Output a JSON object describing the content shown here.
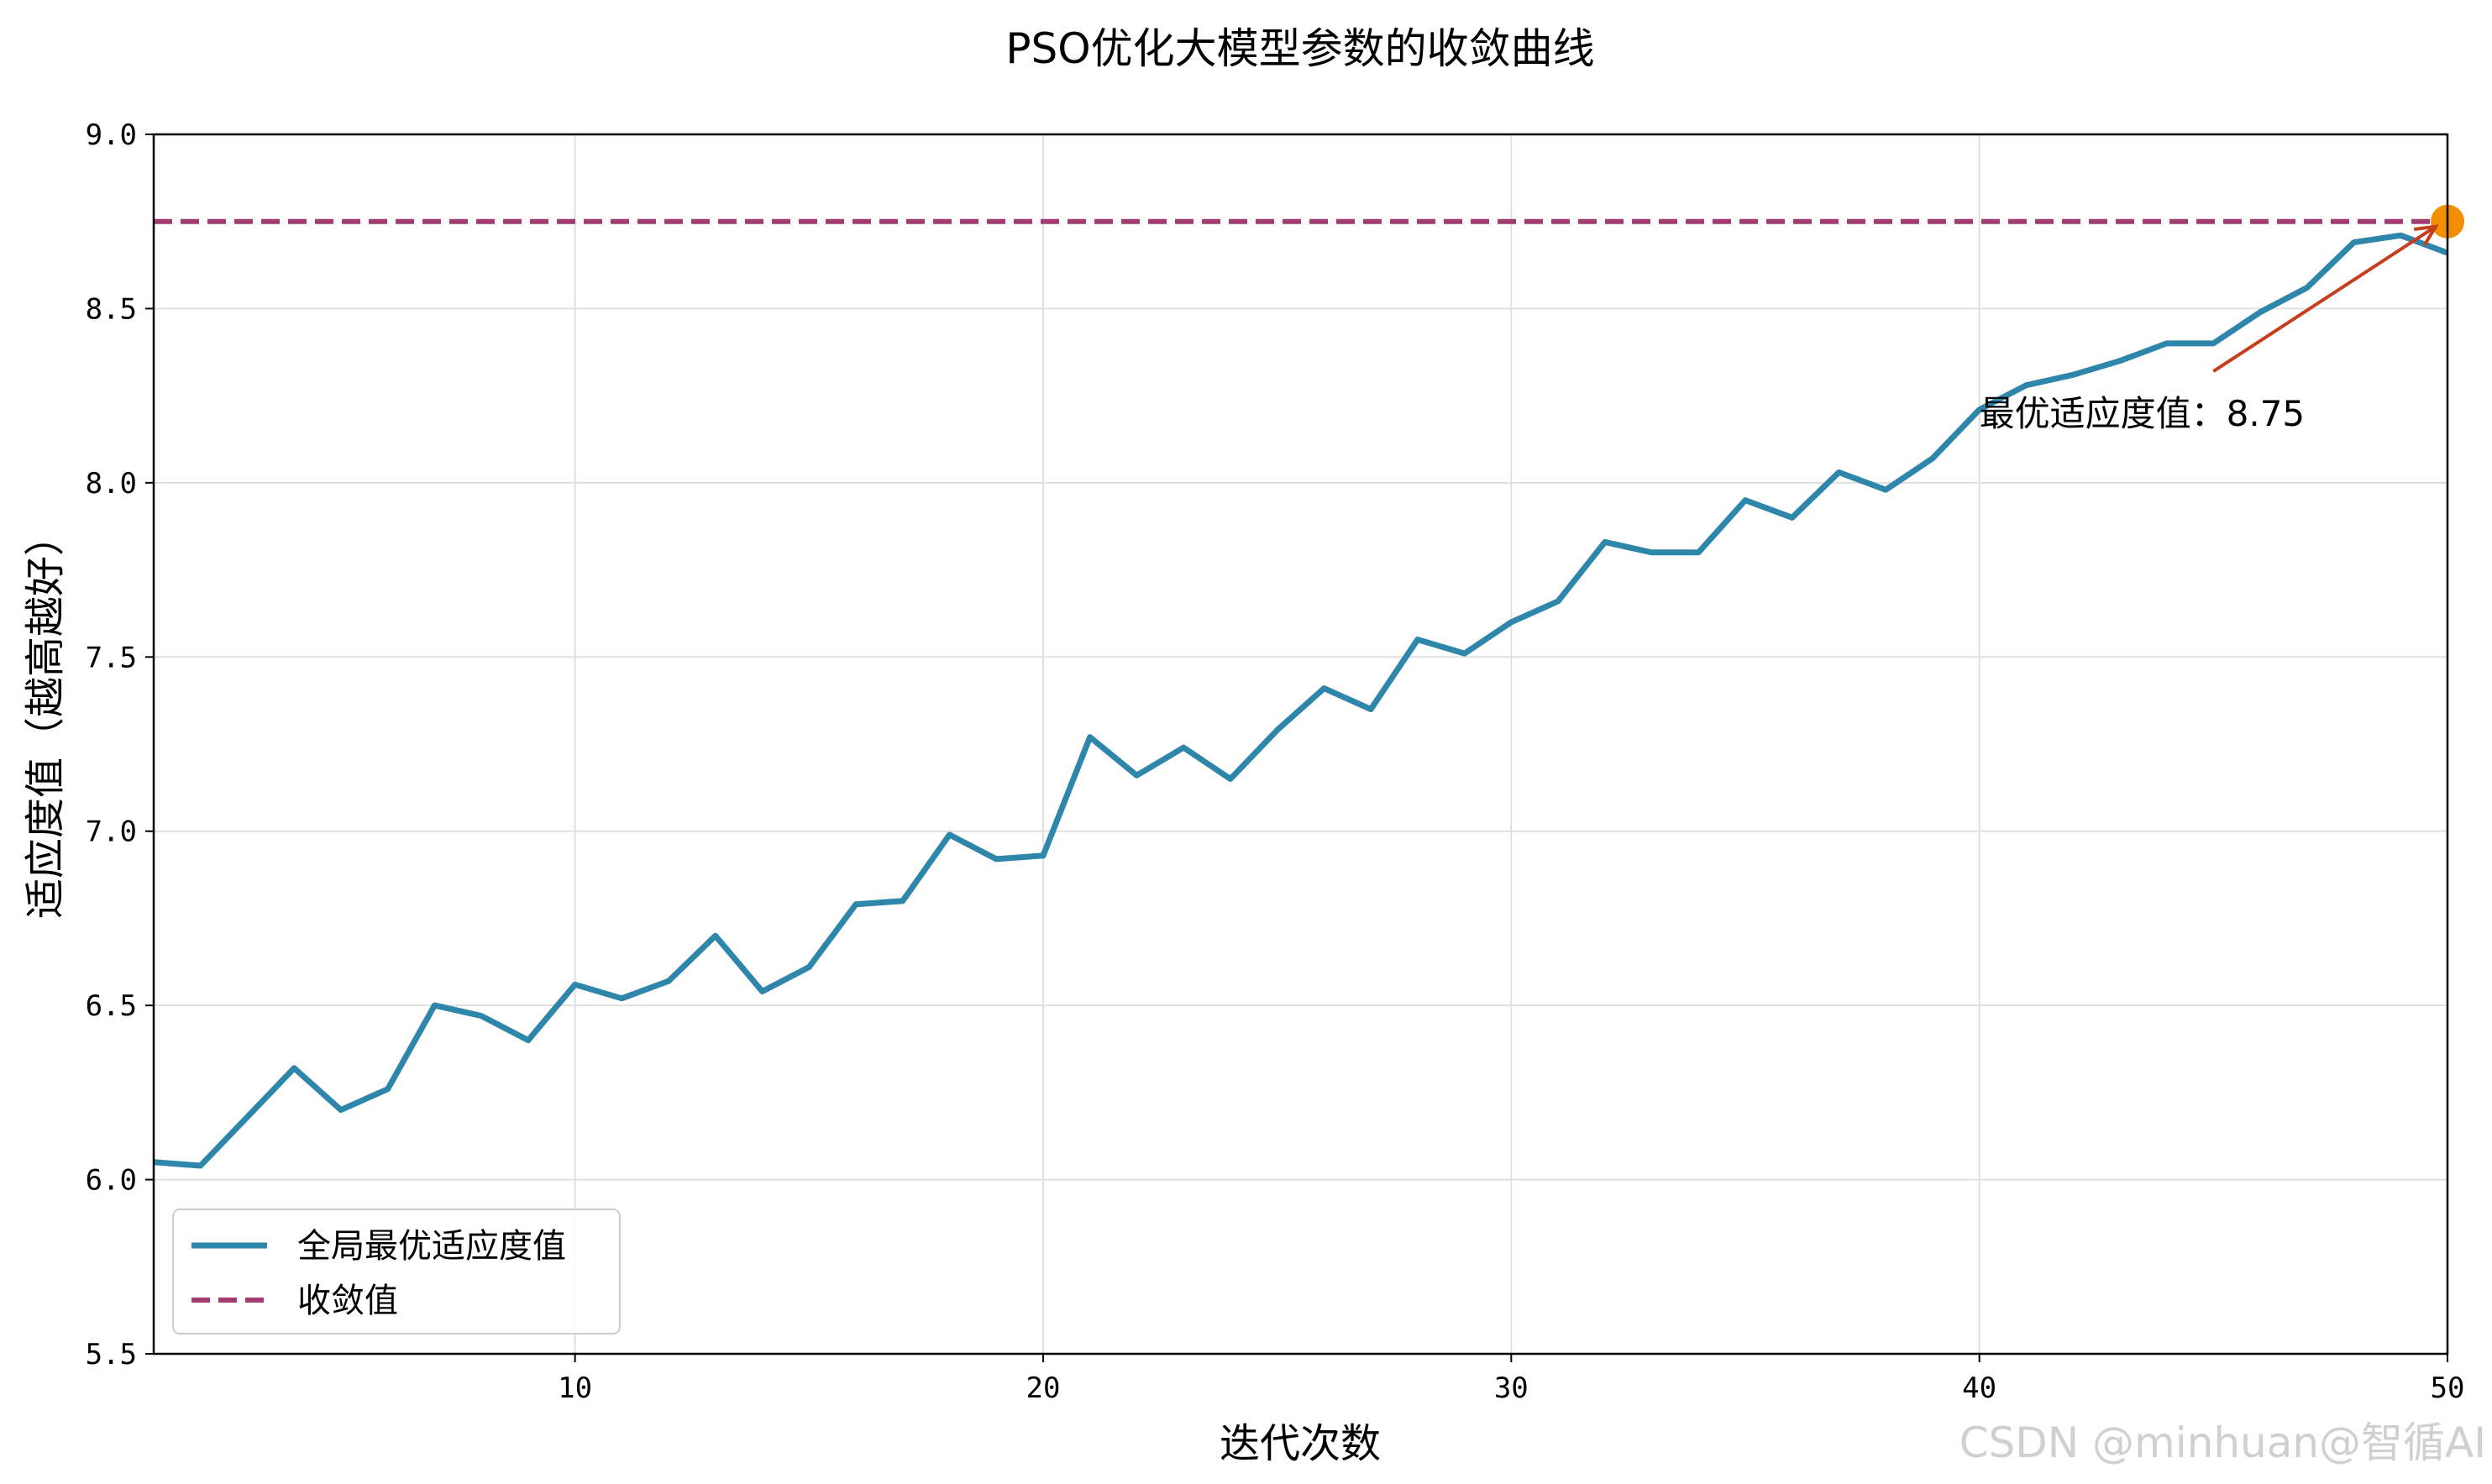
{
  "chart_data": {
    "type": "line",
    "title": "PSO优化大模型参数的收敛曲线",
    "xlabel": "迭代次数",
    "ylabel": "适应度值（越高越好）",
    "xlim": [
      1,
      50
    ],
    "ylim": [
      5.5,
      9.0
    ],
    "x_ticks": [
      10,
      20,
      30,
      40,
      50
    ],
    "y_ticks": [
      "5.5",
      "6.0",
      "6.5",
      "7.0",
      "7.5",
      "8.0",
      "8.5",
      "9.0"
    ],
    "grid": true,
    "legend_position": "lower-left",
    "x": [
      1,
      2,
      3,
      4,
      5,
      6,
      7,
      8,
      9,
      10,
      11,
      12,
      13,
      14,
      15,
      16,
      17,
      18,
      19,
      20,
      21,
      22,
      23,
      24,
      25,
      26,
      27,
      28,
      29,
      30,
      31,
      32,
      33,
      34,
      35,
      36,
      37,
      38,
      39,
      40,
      41,
      42,
      43,
      44,
      45,
      46,
      47,
      48,
      49,
      50
    ],
    "series": [
      {
        "name": "全局最优适应度值",
        "color": "#2e86ab",
        "style": "solid",
        "values": [
          6.05,
          6.04,
          6.18,
          6.32,
          6.2,
          6.26,
          6.5,
          6.47,
          6.4,
          6.56,
          6.52,
          6.57,
          6.7,
          6.54,
          6.61,
          6.79,
          6.8,
          6.99,
          6.92,
          6.93,
          7.27,
          7.16,
          7.24,
          7.15,
          7.29,
          7.41,
          7.35,
          7.55,
          7.51,
          7.6,
          7.66,
          7.83,
          7.8,
          7.8,
          7.95,
          7.9,
          8.03,
          7.98,
          8.07,
          8.21,
          8.28,
          8.31,
          8.35,
          8.4,
          8.4,
          8.49,
          8.56,
          8.69,
          8.71,
          8.66
        ]
      },
      {
        "name": "收敛值",
        "color": "#a23b72",
        "style": "dashed",
        "constant": 8.75
      }
    ],
    "marker": {
      "x": 50,
      "y": 8.75,
      "color": "#f18f01"
    },
    "annotation": {
      "text": "最优适应度值：8.75",
      "text_x": 40,
      "text_y": 8.2,
      "arrow_start_x": 45,
      "arrow_start_y": 8.32,
      "target_x": 50,
      "target_y": 8.75,
      "arrow_color": "#c73e1d"
    }
  },
  "watermark": "CSDN @minhuan@智循AI"
}
